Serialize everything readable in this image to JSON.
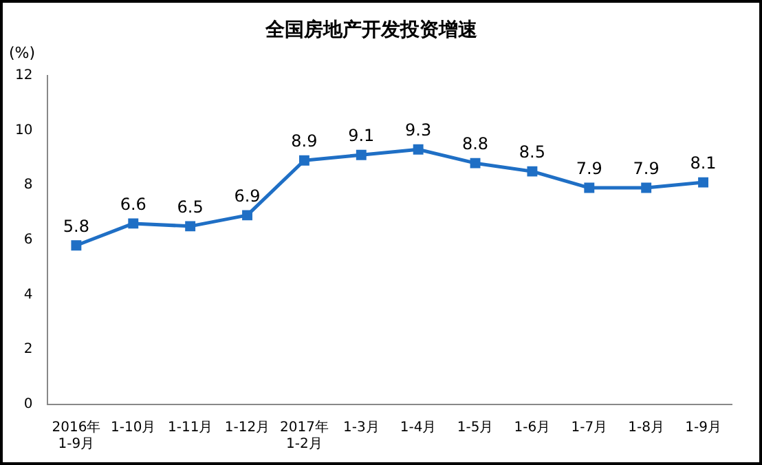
{
  "chart_data": {
    "type": "line",
    "title": "全国房地产开发投资增速",
    "ylabel": "(%)",
    "categories": [
      "2016年\n1-9月",
      "1-10月",
      "1-11月",
      "1-12月",
      "2017年\n1-2月",
      "1-3月",
      "1-4月",
      "1-5月",
      "1-6月",
      "1-7月",
      "1-8月",
      "1-9月"
    ],
    "series": [
      {
        "color": "#1f6fc5",
        "values": [
          5.8,
          6.6,
          6.5,
          6.9,
          8.9,
          9.1,
          9.3,
          8.8,
          8.5,
          7.9,
          7.9,
          8.1
        ]
      }
    ],
    "ylim": [
      0,
      12
    ],
    "yticks": [
      0,
      2,
      4,
      6,
      8,
      10,
      12
    ],
    "grid": false,
    "legend": false,
    "marker": "square",
    "line_style": "solid",
    "data_labels": true
  }
}
